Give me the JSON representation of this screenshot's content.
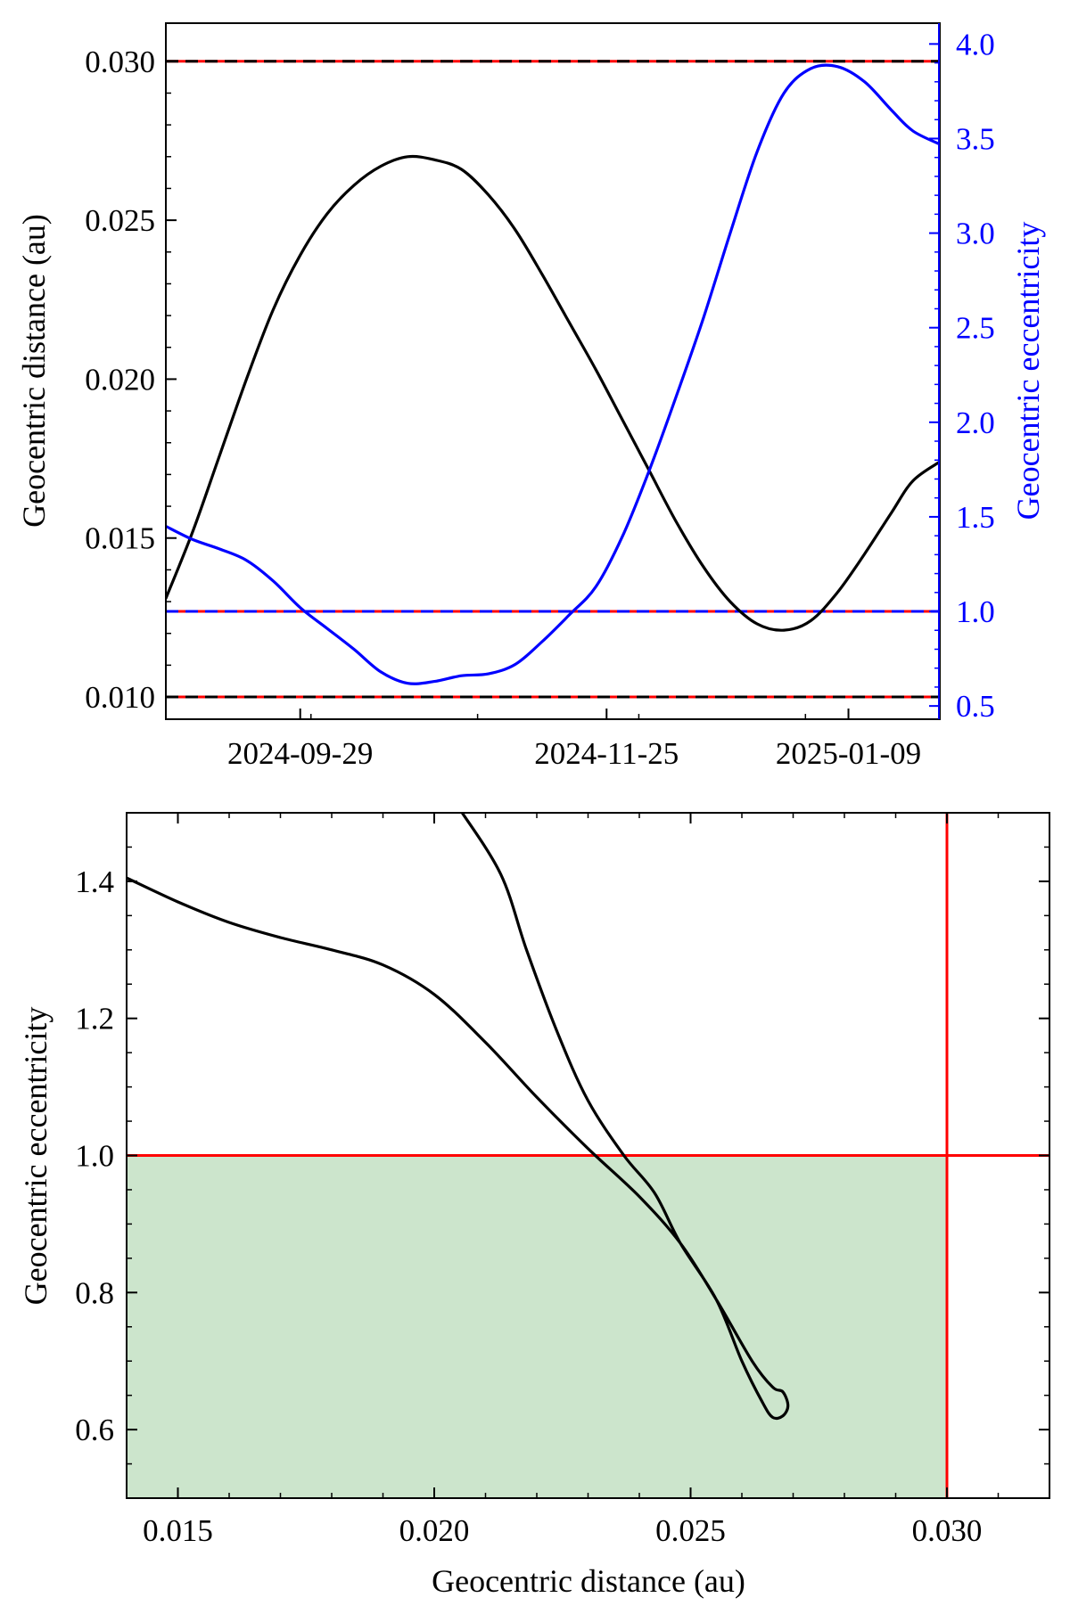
{
  "chart_data": [
    {
      "type": "line",
      "ylabel": "Geocentric distance (au)",
      "y2label": "Geocentric eccentricity",
      "x_axis": "date",
      "xlim": [
        "2024-09-04",
        "2025-01-26"
      ],
      "xticks": [
        "2024-09-29",
        "2024-11-25",
        "2025-01-09"
      ],
      "ylim": [
        0.0093,
        0.0312
      ],
      "yticks": [
        "0.010",
        "0.015",
        "0.020",
        "0.025",
        "0.030"
      ],
      "y2lim": [
        0.43,
        4.11
      ],
      "y2ticks": [
        "0.5",
        "1.0",
        "1.5",
        "2.0",
        "2.5",
        "3.0",
        "3.5",
        "4.0"
      ],
      "grid": false,
      "colors": {
        "distance": "#000000",
        "eccentricity": "#0000ff",
        "reference": "#ff0000"
      },
      "series": [
        {
          "axis": "left",
          "color": "#000000",
          "points": [
            [
              "2024-09-04",
              0.0131
            ],
            [
              "2024-09-09",
              0.0152
            ],
            [
              "2024-09-14",
              0.0176
            ],
            [
              "2024-09-19",
              0.02
            ],
            [
              "2024-09-24",
              0.0222
            ],
            [
              "2024-09-29",
              0.0239
            ],
            [
              "2024-10-04",
              0.0252
            ],
            [
              "2024-10-09",
              0.0261
            ],
            [
              "2024-10-14",
              0.0267
            ],
            [
              "2024-10-19",
              0.027
            ],
            [
              "2024-10-24",
              0.0269
            ],
            [
              "2024-10-29",
              0.0266
            ],
            [
              "2024-11-03",
              0.0258
            ],
            [
              "2024-11-08",
              0.0247
            ],
            [
              "2024-11-13",
              0.0233
            ],
            [
              "2024-11-18",
              0.0218
            ],
            [
              "2024-11-23",
              0.0203
            ],
            [
              "2024-11-28",
              0.0187
            ],
            [
              "2024-12-03",
              0.0171
            ],
            [
              "2024-12-08",
              0.0155
            ],
            [
              "2024-12-13",
              0.0141
            ],
            [
              "2024-12-18",
              0.013
            ],
            [
              "2024-12-23",
              0.0123
            ],
            [
              "2024-12-28",
              0.0121
            ],
            [
              "2025-01-02",
              0.0124
            ],
            [
              "2025-01-07",
              0.0133
            ],
            [
              "2025-01-12",
              0.0145
            ],
            [
              "2025-01-17",
              0.0158
            ],
            [
              "2025-01-21",
              0.0168
            ],
            [
              "2025-01-26",
              0.0174
            ]
          ]
        },
        {
          "axis": "right",
          "color": "#0000ff",
          "points": [
            [
              "2024-09-04",
              1.45
            ],
            [
              "2024-09-09",
              1.38
            ],
            [
              "2024-09-14",
              1.33
            ],
            [
              "2024-09-19",
              1.27
            ],
            [
              "2024-09-24",
              1.16
            ],
            [
              "2024-09-29",
              1.02
            ],
            [
              "2024-10-04",
              0.91
            ],
            [
              "2024-10-09",
              0.8
            ],
            [
              "2024-10-14",
              0.68
            ],
            [
              "2024-10-19",
              0.62
            ],
            [
              "2024-10-24",
              0.63
            ],
            [
              "2024-10-29",
              0.66
            ],
            [
              "2024-11-03",
              0.67
            ],
            [
              "2024-11-08",
              0.72
            ],
            [
              "2024-11-13",
              0.84
            ],
            [
              "2024-11-18",
              0.98
            ],
            [
              "2024-11-23",
              1.13
            ],
            [
              "2024-11-28",
              1.4
            ],
            [
              "2024-12-03",
              1.75
            ],
            [
              "2024-12-08",
              2.14
            ],
            [
              "2024-12-13",
              2.55
            ],
            [
              "2024-12-18",
              3.0
            ],
            [
              "2024-12-23",
              3.43
            ],
            [
              "2024-12-28",
              3.74
            ],
            [
              "2025-01-02",
              3.87
            ],
            [
              "2025-01-07",
              3.88
            ],
            [
              "2025-01-12",
              3.8
            ],
            [
              "2025-01-17",
              3.65
            ],
            [
              "2025-01-21",
              3.54
            ],
            [
              "2025-01-26",
              3.47
            ]
          ]
        }
      ],
      "reference_lines": [
        {
          "axis": "left",
          "y": 0.03,
          "style": "dashed",
          "colors": [
            "#000000",
            "#ff0000"
          ]
        },
        {
          "axis": "left",
          "y": 0.01,
          "style": "dashed",
          "colors": [
            "#000000",
            "#ff0000"
          ]
        },
        {
          "axis": "right",
          "y": 1.0,
          "style": "dashed",
          "colors": [
            "#0000ff",
            "#ff0000"
          ]
        }
      ]
    },
    {
      "type": "line",
      "xlabel": "Geocentric distance (au)",
      "ylabel": "Geocentric eccentricity",
      "xlim": [
        0.014,
        0.032
      ],
      "ylim": [
        0.5,
        1.5
      ],
      "xticks": [
        "0.015",
        "0.020",
        "0.025",
        "0.030"
      ],
      "yticks": [
        "0.6",
        "0.8",
        "1.0",
        "1.2",
        "1.4"
      ],
      "grid": false,
      "colors": {
        "curve": "#000000",
        "reference": "#ff0000",
        "bound_region": "#cce5cc"
      },
      "shaded_region": {
        "x": [
          0.014,
          0.03
        ],
        "y": [
          0.5,
          1.0
        ]
      },
      "vline": 0.03,
      "hline": 1.0,
      "series": [
        {
          "color": "#000000",
          "points": [
            [
              0.014,
              1.405
            ],
            [
              0.015,
              1.37
            ],
            [
              0.016,
              1.34
            ],
            [
              0.017,
              1.318
            ],
            [
              0.018,
              1.3
            ],
            [
              0.019,
              1.278
            ],
            [
              0.02,
              1.235
            ],
            [
              0.021,
              1.165
            ],
            [
              0.022,
              1.085
            ],
            [
              0.023,
              1.01
            ],
            [
              0.024,
              0.94
            ],
            [
              0.0248,
              0.872
            ],
            [
              0.0255,
              0.79
            ],
            [
              0.0262,
              0.7
            ],
            [
              0.0266,
              0.662
            ],
            [
              0.0268,
              0.655
            ],
            [
              0.0269,
              0.635
            ],
            [
              0.0268,
              0.62
            ],
            [
              0.0266,
              0.618
            ],
            [
              0.0264,
              0.64
            ],
            [
              0.026,
              0.7
            ],
            [
              0.0255,
              0.79
            ],
            [
              0.0248,
              0.872
            ],
            [
              0.0243,
              0.945
            ],
            [
              0.0237,
              1.0
            ],
            [
              0.023,
              1.08
            ],
            [
              0.0224,
              1.18
            ],
            [
              0.0218,
              1.3
            ],
            [
              0.0213,
              1.41
            ],
            [
              0.0205,
              1.505
            ]
          ]
        }
      ]
    }
  ]
}
